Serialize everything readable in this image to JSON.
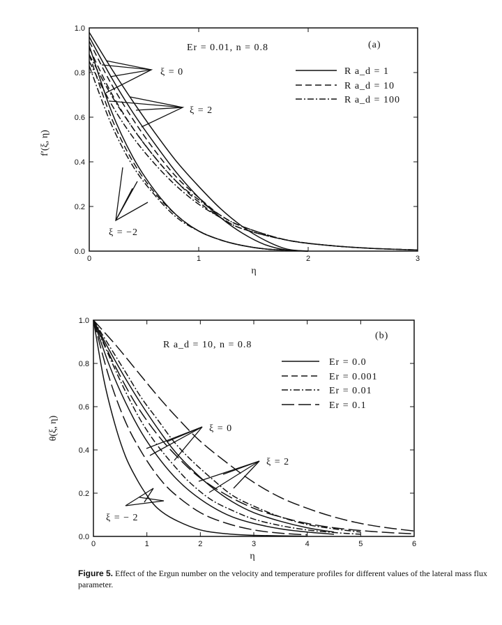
{
  "chart_data": [
    {
      "type": "line",
      "panel": "(a)",
      "annotation": "Er = 0.01,  n = 0.8",
      "xlabel": "η",
      "ylabel": "f′(ξ, η)",
      "xlim": [
        0,
        3
      ],
      "ylim": [
        0,
        1
      ],
      "xticks": [
        "0",
        "1",
        "2",
        "3"
      ],
      "yticks": [
        "0.0",
        "0.2",
        "0.4",
        "0.6",
        "0.8",
        "1.0"
      ],
      "legend": [
        {
          "label": "R a_d = 1",
          "style": "solid"
        },
        {
          "label": "R a_d = 10",
          "style": "dashed"
        },
        {
          "label": "R a_d = 100",
          "style": "dashdot"
        }
      ],
      "legend_position": "top-right",
      "curve_labels": [
        "ξ = 0",
        "ξ = 2",
        "ξ = −2"
      ],
      "series": [
        {
          "name": "ξ = 0, R a_d = 1",
          "style": "solid",
          "x": [
            0,
            0.2,
            0.4,
            0.6,
            0.8,
            1.0,
            1.2,
            1.4,
            1.6,
            1.8,
            2.0
          ],
          "y": [
            0.96,
            0.78,
            0.62,
            0.48,
            0.35,
            0.24,
            0.15,
            0.08,
            0.03,
            0.005,
            0
          ]
        },
        {
          "name": "ξ = 0, R a_d = 10",
          "style": "dashed",
          "x": [
            0,
            0.2,
            0.4,
            0.6,
            0.8,
            1.0,
            1.2,
            1.4,
            1.8,
            2.2,
            2.6,
            3.0
          ],
          "y": [
            0.91,
            0.71,
            0.55,
            0.42,
            0.31,
            0.22,
            0.15,
            0.1,
            0.05,
            0.025,
            0.012,
            0.005
          ]
        },
        {
          "name": "ξ = 0, R a_d = 100",
          "style": "dashdot",
          "x": [
            0,
            0.2,
            0.4,
            0.6,
            0.8,
            1.0,
            1.2,
            1.4,
            1.8,
            2.2,
            2.6,
            3.0
          ],
          "y": [
            0.85,
            0.66,
            0.51,
            0.39,
            0.29,
            0.21,
            0.15,
            0.1,
            0.05,
            0.025,
            0.012,
            0.005
          ]
        },
        {
          "name": "ξ = 2, R a_d = 1",
          "style": "solid",
          "x": [
            0,
            0.2,
            0.4,
            0.6,
            0.8,
            1.0,
            1.2,
            1.4,
            1.6,
            1.8,
            2.0
          ],
          "y": [
            0.98,
            0.82,
            0.67,
            0.53,
            0.4,
            0.29,
            0.19,
            0.11,
            0.05,
            0.01,
            0
          ]
        },
        {
          "name": "ξ = 2, R a_d = 10",
          "style": "dashed",
          "x": [
            0,
            0.2,
            0.4,
            0.6,
            0.8,
            1.0,
            1.2,
            1.4,
            1.8,
            2.2,
            2.6,
            3.0
          ],
          "y": [
            0.94,
            0.75,
            0.59,
            0.45,
            0.33,
            0.24,
            0.16,
            0.11,
            0.05,
            0.025,
            0.012,
            0.005
          ]
        },
        {
          "name": "ξ = 2, R a_d = 100",
          "style": "dashdot",
          "x": [
            0,
            0.2,
            0.4,
            0.6,
            0.8,
            1.0,
            1.2,
            1.4,
            1.8,
            2.2,
            2.6,
            3.0
          ],
          "y": [
            0.88,
            0.7,
            0.55,
            0.42,
            0.31,
            0.23,
            0.16,
            0.11,
            0.05,
            0.025,
            0.012,
            0.005
          ]
        },
        {
          "name": "ξ = −2, R a_d = 1",
          "style": "solid",
          "x": [
            0,
            0.2,
            0.4,
            0.6,
            0.8,
            1.0,
            1.2,
            1.4,
            1.6,
            1.8,
            2.0
          ],
          "y": [
            0.92,
            0.63,
            0.42,
            0.27,
            0.16,
            0.09,
            0.05,
            0.025,
            0.01,
            0.004,
            0
          ]
        },
        {
          "name": "ξ = −2, R a_d = 10",
          "style": "dashed",
          "x": [
            0,
            0.2,
            0.4,
            0.6,
            0.8,
            1.0,
            1.2,
            1.4,
            1.6,
            1.8,
            2.0
          ],
          "y": [
            0.88,
            0.6,
            0.4,
            0.26,
            0.16,
            0.09,
            0.05,
            0.025,
            0.01,
            0.004,
            0
          ]
        },
        {
          "name": "ξ = −2, R a_d = 100",
          "style": "dashdot",
          "x": [
            0,
            0.2,
            0.4,
            0.6,
            0.8,
            1.0,
            1.2,
            1.4,
            1.6,
            1.8,
            2.0
          ],
          "y": [
            0.83,
            0.57,
            0.38,
            0.25,
            0.15,
            0.09,
            0.05,
            0.025,
            0.01,
            0.004,
            0
          ]
        }
      ]
    },
    {
      "type": "line",
      "panel": "(b)",
      "annotation": "R a_d = 10,  n = 0.8",
      "xlabel": "η",
      "ylabel": "θ(ξ, η)",
      "xlim": [
        0,
        6
      ],
      "ylim": [
        0,
        1
      ],
      "xticks": [
        "0",
        "1",
        "2",
        "3",
        "4",
        "5",
        "6"
      ],
      "yticks": [
        "0.0",
        "0.2",
        "0.4",
        "0.6",
        "0.8",
        "1.0"
      ],
      "legend": [
        {
          "label": "Er = 0.0",
          "style": "solid"
        },
        {
          "label": "Er = 0.001",
          "style": "dashed"
        },
        {
          "label": "Er = 0.01",
          "style": "dashdot"
        },
        {
          "label": "Er = 0.1",
          "style": "longdash"
        }
      ],
      "legend_position": "top-right",
      "curve_labels": [
        "ξ = 0",
        "ξ = 2",
        "ξ = − 2"
      ],
      "series": [
        {
          "name": "ξ = −2, Er = 0.0",
          "style": "solid",
          "x": [
            0,
            0.2,
            0.4,
            0.6,
            0.8,
            1.0,
            1.2,
            1.5,
            2.0,
            2.5,
            3.0,
            4.0
          ],
          "y": [
            1.0,
            0.72,
            0.52,
            0.37,
            0.27,
            0.19,
            0.13,
            0.08,
            0.03,
            0.012,
            0.005,
            0.001
          ]
        },
        {
          "name": "ξ = −2, Er = 0.1",
          "style": "longdash",
          "x": [
            0,
            0.3,
            0.6,
            0.9,
            1.2,
            1.5,
            2.0,
            2.5,
            3.0,
            3.5,
            4.0
          ],
          "y": [
            1.0,
            0.73,
            0.53,
            0.39,
            0.28,
            0.2,
            0.11,
            0.06,
            0.03,
            0.015,
            0.007
          ]
        },
        {
          "name": "ξ = 0, Er = 0.0",
          "style": "solid",
          "x": [
            0,
            0.3,
            0.6,
            0.9,
            1.2,
            1.5,
            1.8,
            2.2,
            2.6,
            3.0,
            3.5,
            4.0,
            4.5
          ],
          "y": [
            1.0,
            0.79,
            0.62,
            0.48,
            0.37,
            0.28,
            0.21,
            0.14,
            0.09,
            0.06,
            0.035,
            0.02,
            0.01
          ]
        },
        {
          "name": "ξ = 0, Er = 0.01",
          "style": "dashdot",
          "x": [
            0,
            0.3,
            0.6,
            0.9,
            1.2,
            1.5,
            1.8,
            2.2,
            2.6,
            3.0,
            3.5,
            4.0,
            4.5,
            5.0
          ],
          "y": [
            1.0,
            0.83,
            0.67,
            0.53,
            0.42,
            0.33,
            0.25,
            0.17,
            0.12,
            0.08,
            0.05,
            0.03,
            0.018,
            0.01
          ]
        },
        {
          "name": "ξ = 0, Er = 0.1",
          "style": "longdash",
          "x": [
            0,
            0.4,
            0.8,
            1.2,
            1.6,
            2.0,
            2.5,
            3.0,
            3.5,
            4.0,
            4.5,
            5.0,
            5.5,
            6.0
          ],
          "y": [
            1.0,
            0.79,
            0.61,
            0.47,
            0.36,
            0.27,
            0.19,
            0.13,
            0.09,
            0.06,
            0.04,
            0.027,
            0.018,
            0.012
          ]
        },
        {
          "name": "ξ = 2, Er = 0.0",
          "style": "solid",
          "x": [
            0,
            0.3,
            0.6,
            0.9,
            1.2,
            1.5,
            1.8,
            2.2,
            2.6,
            3.0,
            3.5,
            4.0,
            4.5
          ],
          "y": [
            1.0,
            0.86,
            0.73,
            0.61,
            0.5,
            0.4,
            0.32,
            0.23,
            0.16,
            0.11,
            0.07,
            0.04,
            0.02
          ]
        },
        {
          "name": "ξ = 2, Er = 0.01",
          "style": "dashdot",
          "x": [
            0,
            0.3,
            0.6,
            0.9,
            1.2,
            1.5,
            1.8,
            2.2,
            2.6,
            3.0,
            3.5,
            4.0,
            4.5,
            5.0
          ],
          "y": [
            1.0,
            0.88,
            0.76,
            0.64,
            0.54,
            0.44,
            0.36,
            0.27,
            0.19,
            0.14,
            0.09,
            0.055,
            0.035,
            0.02
          ]
        },
        {
          "name": "ξ = 2, Er = 0.1",
          "style": "longdash",
          "x": [
            0,
            0.4,
            0.8,
            1.2,
            1.6,
            2.0,
            2.5,
            3.0,
            3.5,
            4.0,
            4.5,
            5.0,
            5.5,
            6.0
          ],
          "y": [
            1.0,
            0.89,
            0.77,
            0.65,
            0.54,
            0.44,
            0.34,
            0.25,
            0.18,
            0.13,
            0.09,
            0.06,
            0.04,
            0.025
          ]
        }
      ]
    }
  ],
  "caption": {
    "label": "Figure 5.",
    "text": " Effect of the Ergun number on the velocity and temperature profiles for different values of the lateral mass flux parameter."
  }
}
